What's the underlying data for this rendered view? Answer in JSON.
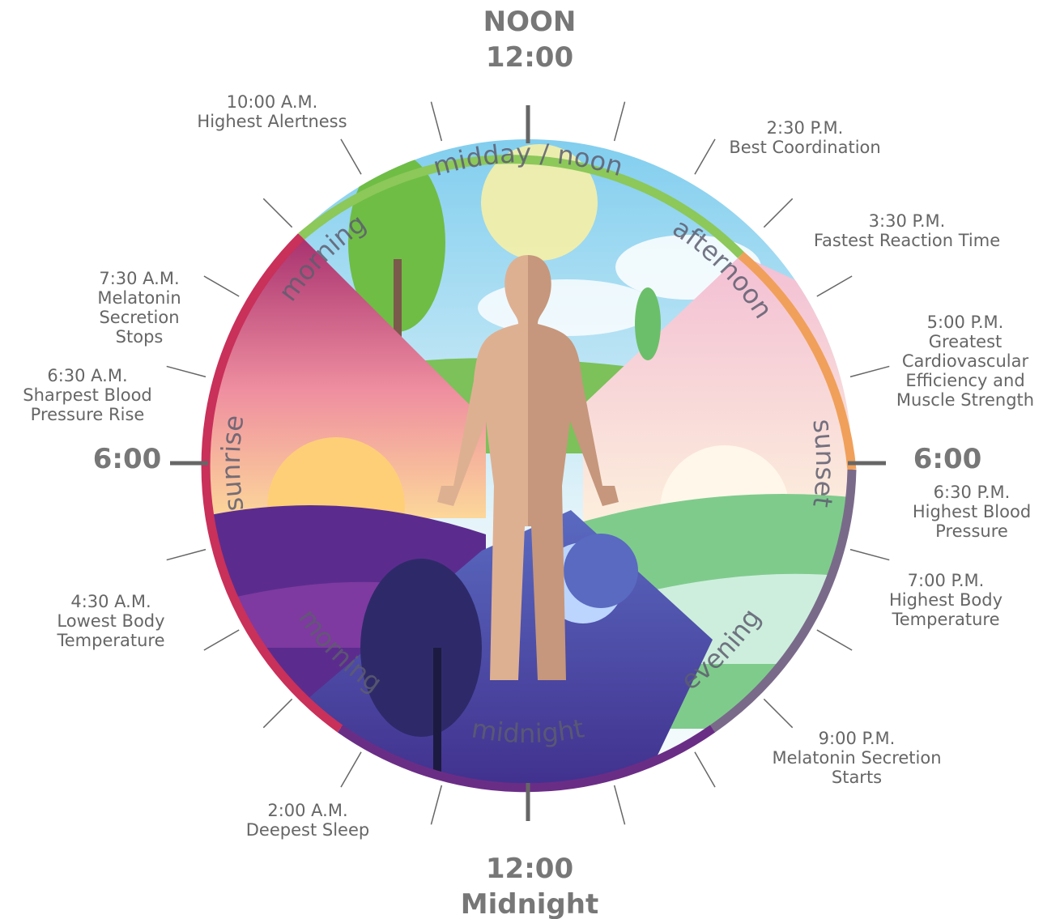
{
  "clock": {
    "top": [
      "NOON",
      "12:00"
    ],
    "bottom": [
      "12:00",
      "Midnight"
    ],
    "left": "6:00",
    "right": "6:00"
  },
  "periods": [
    "midday / noon",
    "afternoon",
    "sunset",
    "evening",
    "midnight",
    "morning",
    "sunrise",
    "morning"
  ],
  "events": [
    {
      "time": "10:00 A.M.",
      "lines": [
        "Highest Alertness"
      ]
    },
    {
      "time": "2:30 P.M.",
      "lines": [
        "Best Coordination"
      ]
    },
    {
      "time": "3:30 P.M.",
      "lines": [
        "Fastest Reaction Time"
      ]
    },
    {
      "time": "5:00 P.M.",
      "lines": [
        "Greatest",
        "Cardiovascular",
        "Efficiency and",
        "Muscle Strength"
      ]
    },
    {
      "time": "6:30 P.M.",
      "lines": [
        "Highest Blood",
        "Pressure"
      ]
    },
    {
      "time": "7:00 P.M.",
      "lines": [
        "Highest Body",
        "Temperature"
      ]
    },
    {
      "time": "9:00 P.M.",
      "lines": [
        "Melatonin Secretion",
        "Starts"
      ]
    },
    {
      "time": "2:00 A.M.",
      "lines": [
        "Deepest Sleep"
      ]
    },
    {
      "time": "4:30 A.M.",
      "lines": [
        "Lowest Body",
        "Temperature"
      ]
    },
    {
      "time": "6:30 A.M.",
      "lines": [
        "Sharpest Blood",
        "Pressure Rise"
      ]
    },
    {
      "time": "7:30 A.M.",
      "lines": [
        "Melatonin",
        "Secretion",
        "Stops"
      ]
    }
  ]
}
